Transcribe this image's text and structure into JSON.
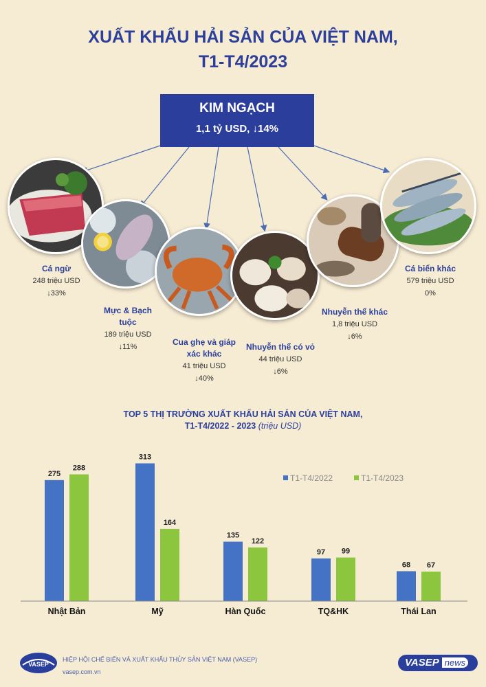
{
  "title_line1": "XUẤT KHẨU HẢI SẢN CỦA VIỆT NAM,",
  "title_line2": "T1-T4/2023",
  "kim_ngach": {
    "label": "KIM NGẠCH",
    "value": "1,1 tỷ USD, ↓14%"
  },
  "products": [
    {
      "name": "Cá ngừ",
      "value": "248 triệu USD",
      "change": "↓33%"
    },
    {
      "name": "Mực & Bạch tuộc",
      "value": "189 triệu USD",
      "change": "↓11%"
    },
    {
      "name": "Cua ghẹ và giáp xác khác",
      "value": "41 triệu USD",
      "change": "↓40%"
    },
    {
      "name": "Nhuyễn thể có vỏ",
      "value": "44 triệu USD",
      "change": "↓6%"
    },
    {
      "name": "Nhuyễn thể khác",
      "value": "1,8 triệu USD",
      "change": "↓6%"
    },
    {
      "name": "Cá biển khác",
      "value": "579 triệu USD",
      "change": "0%"
    }
  ],
  "chart_data": {
    "type": "bar",
    "title": "TOP 5 THỊ TRƯỜNG XUẤT KHẨU HẢI SẢN CỦA VIỆT NAM,",
    "subtitle": "T1-T4/2022 - 2023",
    "unit": "(triệu USD)",
    "categories": [
      "Nhật Bản",
      "Mỹ",
      "Hàn Quốc",
      "TQ&HK",
      "Thái Lan"
    ],
    "series": [
      {
        "name": "T1-T4/2022",
        "values": [
          275,
          313,
          135,
          97,
          68
        ],
        "color": "#4472c4"
      },
      {
        "name": "T1-T4/2023",
        "values": [
          288,
          164,
          122,
          99,
          67
        ],
        "color": "#8cc63f"
      }
    ],
    "ylim": [
      0,
      320
    ],
    "legend": "top-right",
    "grid": false
  },
  "footer": {
    "org": "HIỆP HỘI CHẾ BIẾN VÀ XUẤT KHẨU THỦY SẢN VIỆT NAM (VASEP)",
    "website": "vasep.com.vn",
    "logo_text": "VASEP",
    "badge_main": "VASEP",
    "badge_sub": "news"
  }
}
